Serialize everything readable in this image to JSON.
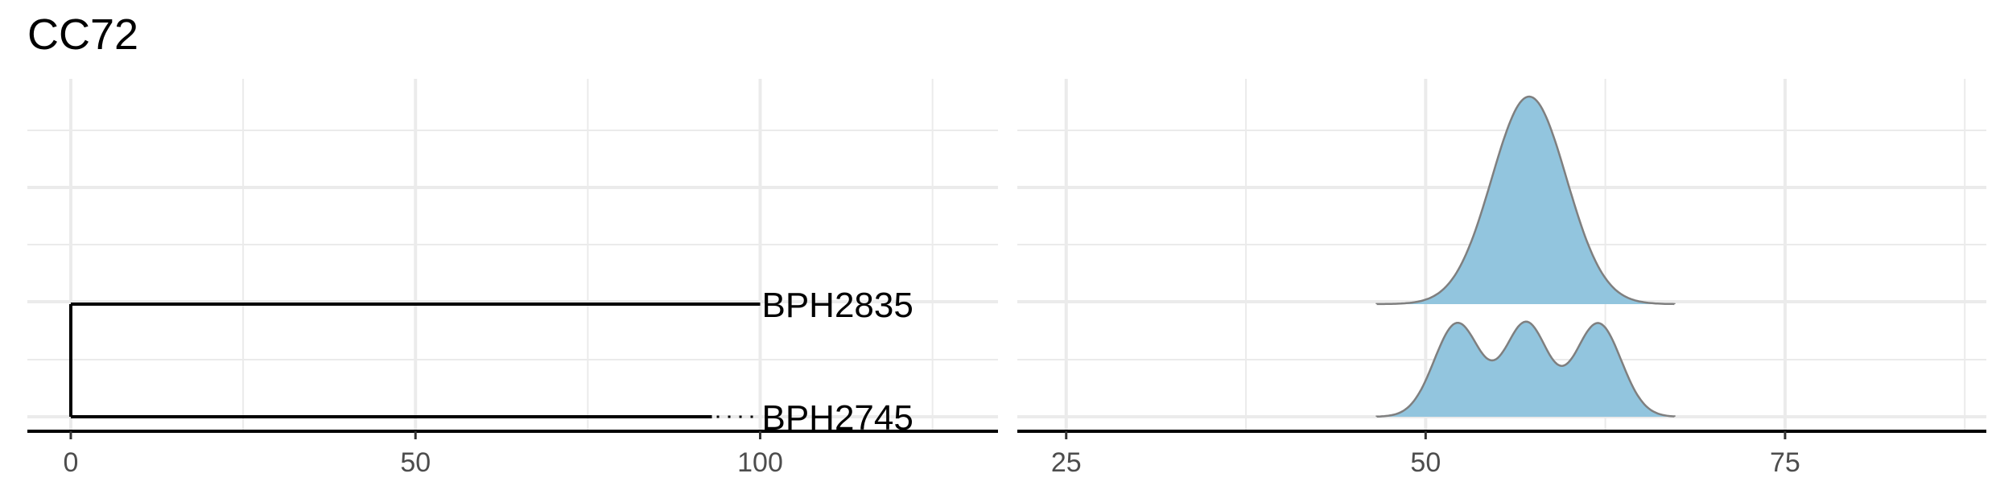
{
  "title": "CC72",
  "chart_data": [
    {
      "type": "tree",
      "tips": [
        {
          "label": "BPH2835",
          "branch_length": 100
        },
        {
          "label": "BPH2745",
          "branch_length": 93
        }
      ],
      "xlim": [
        -6.3,
        134.5
      ],
      "x_ticks": [
        0,
        50,
        100
      ],
      "grid": true
    },
    {
      "type": "ridgeline",
      "series": [
        {
          "tip": "BPH2835",
          "peaks": [
            {
              "x": 57.2,
              "sd": 2.6,
              "height": 1.0
            }
          ],
          "range": [
            46.6,
            67.3
          ]
        },
        {
          "tip": "BPH2745",
          "peaks": [
            {
              "x": 52.2,
              "sd": 1.6,
              "height": 0.45
            },
            {
              "x": 57.0,
              "sd": 1.5,
              "height": 0.45
            },
            {
              "x": 62.0,
              "sd": 1.6,
              "height": 0.45
            }
          ],
          "range": [
            46.6,
            67.3
          ]
        }
      ],
      "xlim": [
        21.6,
        89.0
      ],
      "x_ticks": [
        25,
        50,
        75
      ],
      "fill_color": "#92c5de",
      "line_color": "#7f7f7f",
      "grid": true
    }
  ]
}
